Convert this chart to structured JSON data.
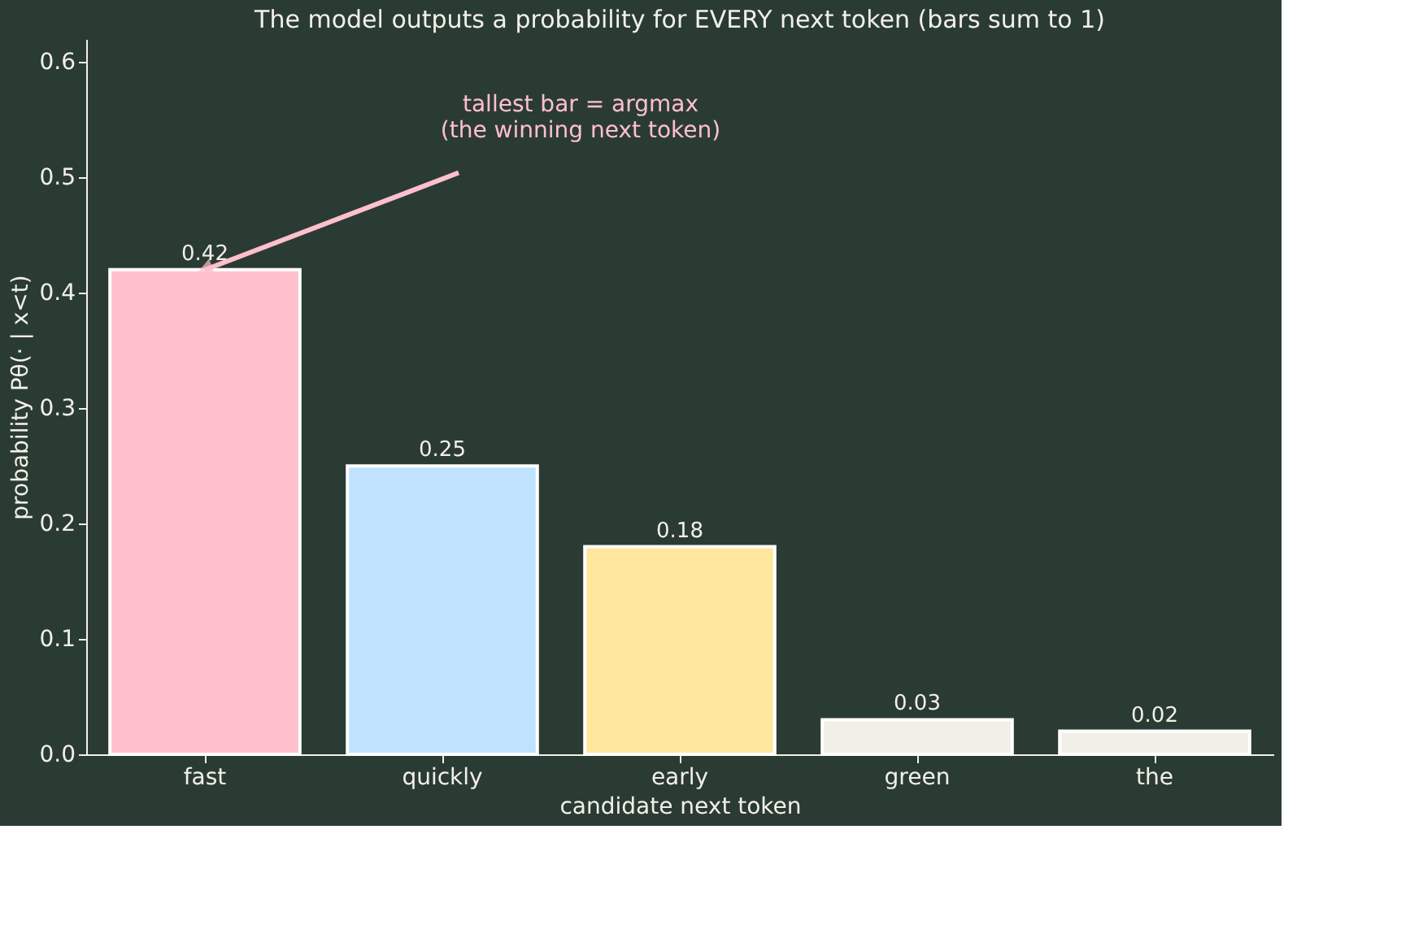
{
  "chart_data": {
    "type": "bar",
    "title": "The model outputs a probability for EVERY next token (bars sum to 1)",
    "xlabel": "candidate next token",
    "ylabel": "probability  Pθ(· | x<t)",
    "categories": [
      "fast",
      "quickly",
      "early",
      "green",
      "the"
    ],
    "values": [
      0.42,
      0.25,
      0.18,
      0.03,
      0.02
    ],
    "colors": [
      "#ffc0cb",
      "#bfe3ff",
      "#ffe79e",
      "#f2f0e6",
      "#f2f0e6"
    ],
    "ylim": [
      0,
      0.62
    ],
    "yticks": [
      {
        "value": 0,
        "label": "0.0"
      },
      {
        "value": 0.1,
        "label": "0.1"
      },
      {
        "value": 0.2,
        "label": "0.2"
      },
      {
        "value": 0.3,
        "label": "0.3"
      },
      {
        "value": 0.4,
        "label": "0.4"
      },
      {
        "value": 0.5,
        "label": "0.5"
      },
      {
        "value": 0.6,
        "label": "0.6"
      }
    ],
    "data_labels": true,
    "grid": false,
    "annotations": [
      {
        "text": "tallest bar = argmax\n(the winning next token)",
        "x": "fast",
        "y": 0.42
      }
    ]
  }
}
